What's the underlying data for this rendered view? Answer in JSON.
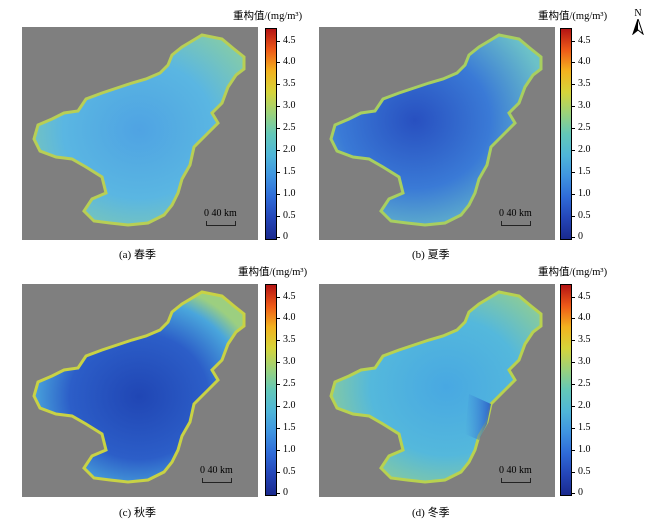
{
  "unit_label": "重构值/(mg/m³)",
  "colorbar_ticks": [
    "4.5",
    "4.0",
    "3.5",
    "3.0",
    "2.5",
    "2.0",
    "1.5",
    "1.0",
    "0.5",
    "0"
  ],
  "colorbar_range": [
    0,
    4.8
  ],
  "scale_label": "0  40 km",
  "north_label": "N",
  "panels": [
    {
      "caption": "(a) 春季",
      "level": 1.9
    },
    {
      "caption": "(b) 夏季",
      "level": 1.2
    },
    {
      "caption": "(c) 秋季",
      "level": 1.0
    },
    {
      "caption": "(d) 冬季",
      "level": 2.0
    }
  ],
  "colors": {
    "land": "#7f7f7f",
    "spring_water": "#5ab4e6",
    "summer_water": "#2e62cc",
    "autumn_water": "#2a58c4",
    "winter_water": "#4fb4e0",
    "coast_high": "#c8d245",
    "coast_mid": "#8fcc8a"
  }
}
